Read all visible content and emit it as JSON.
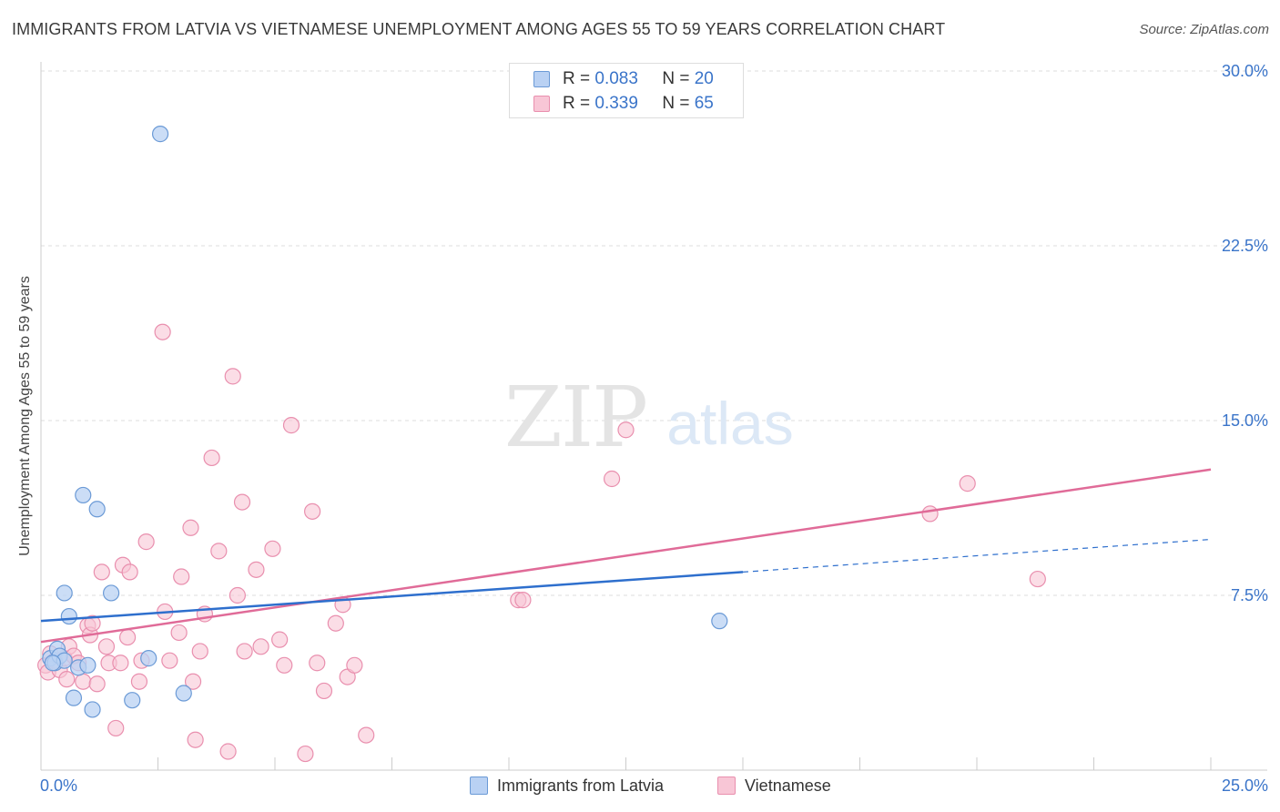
{
  "title": "IMMIGRANTS FROM LATVIA VS VIETNAMESE UNEMPLOYMENT AMONG AGES 55 TO 59 YEARS CORRELATION CHART",
  "source": "Source: ZipAtlas.com",
  "watermark": {
    "zip": "ZIP",
    "atlas": "atlas"
  },
  "legend": {
    "rows": [
      {
        "r_label": "R =",
        "r_value": "0.083",
        "n_label": "N =",
        "n_value": "20"
      },
      {
        "r_label": "R =",
        "r_value": "0.339",
        "n_label": "N =",
        "n_value": "65"
      }
    ]
  },
  "colors": {
    "latvia_fill": "#b9d1f3",
    "latvia_stroke": "#6b9ad6",
    "latvia_line": "#2e6fcd",
    "viet_fill": "#f8c6d6",
    "viet_stroke": "#e98fae",
    "viet_line": "#e06b98",
    "tick_label": "#3a74c9",
    "grid": "#dddddd"
  },
  "chart_data": {
    "type": "scatter",
    "xlabel": "",
    "ylabel": "Unemployment Among Ages 55 to 59 years",
    "xlim": [
      0,
      25
    ],
    "ylim": [
      0,
      30
    ],
    "y_ticks": [
      7.5,
      15.0,
      22.5,
      30.0
    ],
    "y_tick_labels": [
      "7.5%",
      "15.0%",
      "22.5%",
      "30.0%"
    ],
    "x_tick_labels": [
      "0.0%",
      "25.0%"
    ],
    "grid": "horizontal dashed",
    "legend_placement": "top-center",
    "series": [
      {
        "name": "Immigrants from Latvia",
        "color": "#b9d1f3",
        "points": [
          [
            0.2,
            4.8
          ],
          [
            0.3,
            4.6
          ],
          [
            0.35,
            5.2
          ],
          [
            0.4,
            4.9
          ],
          [
            0.5,
            4.7
          ],
          [
            0.6,
            6.6
          ],
          [
            0.5,
            7.6
          ],
          [
            0.8,
            4.4
          ],
          [
            0.7,
            3.1
          ],
          [
            0.9,
            11.8
          ],
          [
            1.0,
            4.5
          ],
          [
            1.1,
            2.6
          ],
          [
            1.2,
            11.2
          ],
          [
            1.5,
            7.6
          ],
          [
            1.95,
            3.0
          ],
          [
            2.3,
            4.8
          ],
          [
            2.55,
            27.3
          ],
          [
            3.05,
            3.3
          ],
          [
            14.5,
            6.4
          ],
          [
            0.25,
            4.6
          ]
        ],
        "trend": {
          "x": [
            0,
            15
          ],
          "y": [
            6.4,
            8.5
          ]
        },
        "trend_extension": {
          "x": [
            15,
            25
          ],
          "y": [
            8.5,
            9.9
          ]
        }
      },
      {
        "name": "Vietnamese",
        "color": "#f8c6d6",
        "points": [
          [
            0.1,
            4.5
          ],
          [
            0.15,
            4.2
          ],
          [
            0.2,
            5.0
          ],
          [
            0.3,
            4.7
          ],
          [
            0.4,
            4.3
          ],
          [
            0.5,
            4.8
          ],
          [
            0.55,
            3.9
          ],
          [
            0.6,
            5.3
          ],
          [
            0.7,
            4.9
          ],
          [
            0.8,
            4.6
          ],
          [
            0.9,
            3.8
          ],
          [
            1.0,
            6.2
          ],
          [
            1.05,
            5.8
          ],
          [
            1.1,
            6.3
          ],
          [
            1.2,
            3.7
          ],
          [
            1.3,
            8.5
          ],
          [
            1.4,
            5.3
          ],
          [
            1.45,
            4.6
          ],
          [
            1.6,
            1.8
          ],
          [
            1.7,
            4.6
          ],
          [
            1.75,
            8.8
          ],
          [
            1.85,
            5.7
          ],
          [
            1.9,
            8.5
          ],
          [
            2.1,
            3.8
          ],
          [
            2.15,
            4.7
          ],
          [
            2.25,
            9.8
          ],
          [
            2.6,
            18.8
          ],
          [
            2.65,
            6.8
          ],
          [
            2.75,
            4.7
          ],
          [
            2.95,
            5.9
          ],
          [
            3.0,
            8.3
          ],
          [
            3.2,
            10.4
          ],
          [
            3.25,
            3.8
          ],
          [
            3.3,
            1.3
          ],
          [
            3.4,
            5.1
          ],
          [
            3.5,
            6.7
          ],
          [
            3.65,
            13.4
          ],
          [
            3.8,
            9.4
          ],
          [
            4.0,
            0.8
          ],
          [
            4.1,
            16.9
          ],
          [
            4.2,
            7.5
          ],
          [
            4.3,
            11.5
          ],
          [
            4.35,
            5.1
          ],
          [
            4.6,
            8.6
          ],
          [
            4.7,
            5.3
          ],
          [
            4.95,
            9.5
          ],
          [
            5.1,
            5.6
          ],
          [
            5.2,
            4.5
          ],
          [
            5.35,
            14.8
          ],
          [
            5.65,
            0.7
          ],
          [
            5.8,
            11.1
          ],
          [
            5.9,
            4.6
          ],
          [
            6.05,
            3.4
          ],
          [
            6.3,
            6.3
          ],
          [
            6.45,
            7.1
          ],
          [
            6.55,
            4.0
          ],
          [
            6.7,
            4.5
          ],
          [
            6.95,
            1.5
          ],
          [
            10.2,
            7.3
          ],
          [
            10.3,
            7.3
          ],
          [
            12.2,
            12.5
          ],
          [
            12.5,
            14.6
          ],
          [
            19.0,
            11.0
          ],
          [
            19.8,
            12.3
          ],
          [
            21.3,
            8.2
          ]
        ],
        "trend": {
          "x": [
            0,
            25
          ],
          "y": [
            5.5,
            12.9
          ]
        }
      }
    ]
  }
}
